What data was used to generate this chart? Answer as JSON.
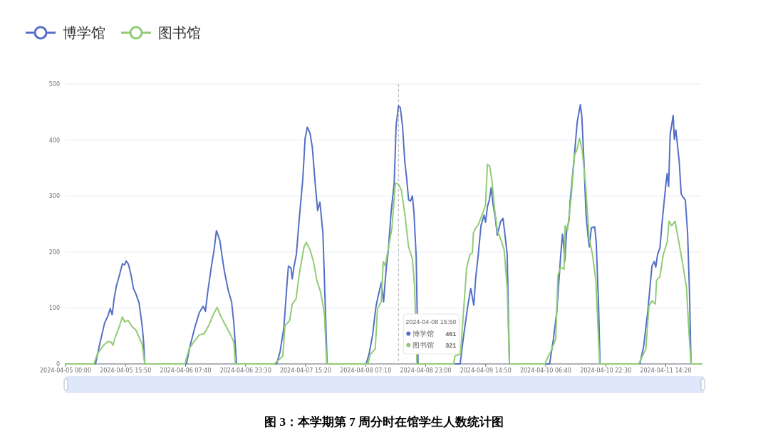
{
  "chart_data": {
    "type": "line",
    "title": "图 3：本学期第 7 周分时在馆学生人数统计图",
    "legend": "top left",
    "grid": "y",
    "ylim": [
      0,
      500
    ],
    "yticks": [
      0,
      100,
      200,
      300,
      400,
      500
    ],
    "xlim": [
      "2024-04-05T00:00",
      "2024-04-11T23:50"
    ],
    "xticks": [
      {
        "value": "2024-04-05T00:00",
        "label": "2024-04-05 00:00"
      },
      {
        "value": "2024-04-05T15:50",
        "label": "2024-04-05 15:50"
      },
      {
        "value": "2024-04-06T07:40",
        "label": "2024-04-06 07:40"
      },
      {
        "value": "2024-04-06T23:30",
        "label": "2024-04-06 23:30"
      },
      {
        "value": "2024-04-07T15:20",
        "label": "2024-04-07 15:20"
      },
      {
        "value": "2024-04-08T07:10",
        "label": "2024-04-08 07:10"
      },
      {
        "value": "2024-04-08T23:00",
        "label": "2024-04-08 23:00"
      },
      {
        "value": "2024-04-09T14:50",
        "label": "2024-04-09 14:50"
      },
      {
        "value": "2024-04-10T06:40",
        "label": "2024-04-10 06:40"
      },
      {
        "value": "2024-04-10T22:30",
        "label": "2024-04-10 22:30"
      },
      {
        "value": "2024-04-11T14:20",
        "label": "2024-04-11 14:20"
      }
    ],
    "ref_lines": [
      {
        "axis": "x",
        "value": "2024-04-08T15:50",
        "color": "#999999",
        "line_style": "dashed"
      }
    ],
    "annotations": [
      "2024-04-08 15:50",
      "博学馆",
      "461",
      "图书馆",
      "321"
    ],
    "series": [
      {
        "name": "博学馆",
        "color": "#5470c6",
        "x": [
          "2024-04-05T00:00",
          "2024-04-05T07:54",
          "2024-04-05T09:00",
          "2024-04-05T10:18",
          "2024-04-05T11:12",
          "2024-04-05T11:48",
          "2024-04-05T12:18",
          "2024-04-05T12:48",
          "2024-04-05T13:24",
          "2024-04-05T14:12",
          "2024-04-05T15:00",
          "2024-04-05T15:36",
          "2024-04-05T16:00",
          "2024-04-05T16:36",
          "2024-04-05T17:18",
          "2024-04-05T17:54",
          "2024-04-05T18:30",
          "2024-04-05T19:24",
          "2024-04-05T20:12",
          "2024-04-05T20:36",
          "2024-04-05T20:54",
          "2024-04-06T07:54",
          "2024-04-06T08:48",
          "2024-04-06T10:06",
          "2024-04-06T11:18",
          "2024-04-06T12:18",
          "2024-04-06T12:54",
          "2024-04-06T13:30",
          "2024-04-06T14:30",
          "2024-04-06T15:12",
          "2024-04-06T15:48",
          "2024-04-06T16:42",
          "2024-04-06T17:18",
          "2024-04-06T17:54",
          "2024-04-06T18:54",
          "2024-04-06T19:48",
          "2024-04-06T20:24",
          "2024-04-06T21:06",
          "2024-04-07T07:42",
          "2024-04-07T08:36",
          "2024-04-07T09:36",
          "2024-04-07T10:24",
          "2024-04-07T10:48",
          "2024-04-07T11:30",
          "2024-04-07T11:48",
          "2024-04-07T12:18",
          "2024-04-07T12:54",
          "2024-04-07T13:36",
          "2024-04-07T14:36",
          "2024-04-07T15:12",
          "2024-04-07T15:48",
          "2024-04-07T16:30",
          "2024-04-07T17:06",
          "2024-04-07T17:54",
          "2024-04-07T18:30",
          "2024-04-07T19:06",
          "2024-04-07T19:54",
          "2024-04-07T20:30",
          "2024-04-07T21:00",
          "2024-04-08T07:18",
          "2024-04-08T08:06",
          "2024-04-08T09:00",
          "2024-04-08T09:54",
          "2024-04-08T10:42",
          "2024-04-08T11:18",
          "2024-04-08T11:54",
          "2024-04-08T12:36",
          "2024-04-08T13:06",
          "2024-04-08T13:54",
          "2024-04-08T14:42",
          "2024-04-08T15:12",
          "2024-04-08T15:50",
          "2024-04-08T16:18",
          "2024-04-08T16:54",
          "2024-04-08T17:30",
          "2024-04-08T18:00",
          "2024-04-08T18:30",
          "2024-04-08T19:00",
          "2024-04-08T19:30",
          "2024-04-08T19:54",
          "2024-04-08T20:30",
          "2024-04-08T21:00",
          "2024-04-09T08:06",
          "2024-04-09T08:54",
          "2024-04-09T10:06",
          "2024-04-09T10:54",
          "2024-04-09T11:42",
          "2024-04-09T12:12",
          "2024-04-09T12:48",
          "2024-04-09T13:36",
          "2024-04-09T14:24",
          "2024-04-09T14:48",
          "2024-04-09T15:18",
          "2024-04-09T15:48",
          "2024-04-09T16:18",
          "2024-04-09T16:42",
          "2024-04-09T17:18",
          "2024-04-09T17:54",
          "2024-04-09T18:48",
          "2024-04-09T19:24",
          "2024-04-09T19:48",
          "2024-04-09T20:30",
          "2024-04-09T21:06",
          "2024-04-10T07:42",
          "2024-04-10T08:42",
          "2024-04-10T09:36",
          "2024-04-10T10:36",
          "2024-04-10T11:06",
          "2024-04-10T11:24",
          "2024-04-10T11:42",
          "2024-04-10T12:12",
          "2024-04-10T12:48",
          "2024-04-10T13:06",
          "2024-04-10T13:48",
          "2024-04-10T14:18",
          "2024-04-10T15:00",
          "2024-04-10T15:48",
          "2024-04-10T16:12",
          "2024-04-10T16:42",
          "2024-04-10T17:18",
          "2024-04-10T17:48",
          "2024-04-10T18:12",
          "2024-04-10T18:42",
          "2024-04-10T19:36",
          "2024-04-10T20:00",
          "2024-04-10T20:36",
          "2024-04-10T21:00",
          "2024-04-11T07:30",
          "2024-04-11T08:30",
          "2024-04-11T09:36",
          "2024-04-11T10:42",
          "2024-04-11T11:18",
          "2024-04-11T11:42",
          "2024-04-11T12:12",
          "2024-04-11T12:48",
          "2024-04-11T13:24",
          "2024-04-11T14:24",
          "2024-04-11T14:42",
          "2024-04-11T15:06",
          "2024-04-11T15:30",
          "2024-04-11T16:18",
          "2024-04-11T16:36",
          "2024-04-11T17:00",
          "2024-04-11T17:54",
          "2024-04-11T18:24",
          "2024-04-11T18:54",
          "2024-04-11T19:30",
          "2024-04-11T20:06",
          "2024-04-11T20:36",
          "2024-04-11T21:00",
          "2024-04-11T23:50"
        ],
        "values": [
          0,
          0,
          35,
          73,
          86,
          99,
          88,
          116,
          139,
          158,
          179,
          177,
          184,
          178,
          158,
          135,
          126,
          109,
          69,
          39,
          0,
          0,
          31,
          65,
          92,
          103,
          94,
          128,
          175,
          204,
          238,
          221,
          192,
          166,
          132,
          111,
          73,
          0,
          0,
          22,
          65,
          141,
          175,
          171,
          152,
          175,
          196,
          255,
          331,
          403,
          423,
          412,
          387,
          319,
          274,
          289,
          234,
          107,
          0,
          0,
          18,
          52,
          103,
          128,
          145,
          111,
          171,
          200,
          272,
          323,
          425,
          461,
          458,
          425,
          361,
          331,
          293,
          291,
          300,
          272,
          192,
          0,
          0,
          44,
          103,
          135,
          105,
          154,
          190,
          247,
          266,
          253,
          281,
          293,
          315,
          289,
          264,
          230,
          255,
          260,
          238,
          196,
          0,
          0,
          44,
          94,
          192,
          232,
          213,
          183,
          239,
          255,
          289,
          340,
          378,
          433,
          463,
          442,
          370,
          268,
          230,
          209,
          243,
          245,
          217,
          107,
          0,
          0,
          31,
          94,
          175,
          183,
          173,
          196,
          207,
          255,
          323,
          340,
          317,
          410,
          444,
          401,
          418,
          361,
          304,
          298,
          293,
          234,
          128,
          0,
          0
        ]
      },
      {
        "name": "图书馆",
        "color": "#91cc75",
        "x": [
          "2024-04-05T00:00",
          "2024-04-05T07:30",
          "2024-04-05T08:24",
          "2024-04-05T10:00",
          "2024-04-05T11:12",
          "2024-04-05T12:00",
          "2024-04-05T12:30",
          "2024-04-05T13:06",
          "2024-04-05T13:54",
          "2024-04-05T15:00",
          "2024-04-05T15:36",
          "2024-04-05T16:30",
          "2024-04-05T17:30",
          "2024-04-05T18:30",
          "2024-04-05T19:24",
          "2024-04-05T20:12",
          "2024-04-05T20:54",
          "2024-04-06T07:30",
          "2024-04-06T08:36",
          "2024-04-06T09:48",
          "2024-04-06T11:18",
          "2024-04-06T12:36",
          "2024-04-06T13:48",
          "2024-04-06T15:06",
          "2024-04-06T16:00",
          "2024-04-06T16:54",
          "2024-04-06T18:12",
          "2024-04-06T19:24",
          "2024-04-06T20:24",
          "2024-04-06T20:48",
          "2024-04-07T07:06",
          "2024-04-07T09:18",
          "2024-04-07T09:54",
          "2024-04-07T11:06",
          "2024-04-07T11:48",
          "2024-04-07T12:48",
          "2024-04-07T13:42",
          "2024-04-07T14:54",
          "2024-04-07T15:30",
          "2024-04-07T16:30",
          "2024-04-07T17:24",
          "2024-04-07T18:18",
          "2024-04-07T19:18",
          "2024-04-07T20:18",
          "2024-04-07T20:54",
          "2024-04-08T07:48",
          "2024-04-08T08:18",
          "2024-04-08T09:42",
          "2024-04-08T10:18",
          "2024-04-08T11:18",
          "2024-04-08T11:48",
          "2024-04-08T12:18",
          "2024-04-08T13:06",
          "2024-04-08T14:06",
          "2024-04-08T15:00",
          "2024-04-08T15:50",
          "2024-04-08T16:36",
          "2024-04-08T17:30",
          "2024-04-08T18:30",
          "2024-04-08T19:30",
          "2024-04-08T20:06",
          "2024-04-08T20:42",
          "2024-04-09T06:24",
          "2024-04-09T06:42",
          "2024-04-09T08:12",
          "2024-04-09T09:48",
          "2024-04-09T10:42",
          "2024-04-09T11:18",
          "2024-04-09T11:36",
          "2024-04-09T12:12",
          "2024-04-09T12:54",
          "2024-04-09T14:12",
          "2024-04-09T14:48",
          "2024-04-09T15:18",
          "2024-04-09T15:54",
          "2024-04-09T16:30",
          "2024-04-09T17:06",
          "2024-04-09T17:54",
          "2024-04-09T18:54",
          "2024-04-09T19:42",
          "2024-04-09T20:30",
          "2024-04-09T21:06",
          "2024-04-10T06:30",
          "2024-04-10T06:48",
          "2024-04-10T08:00",
          "2024-04-10T09:18",
          "2024-04-10T09:54",
          "2024-04-10T10:36",
          "2024-04-10T11:30",
          "2024-04-10T11:48",
          "2024-04-10T12:24",
          "2024-04-10T13:24",
          "2024-04-10T14:18",
          "2024-04-10T14:54",
          "2024-04-10T15:36",
          "2024-04-10T16:18",
          "2024-04-10T17:12",
          "2024-04-10T18:06",
          "2024-04-10T19:00",
          "2024-04-10T19:54",
          "2024-04-10T20:54",
          "2024-04-11T07:12",
          "2024-04-11T09:06",
          "2024-04-11T09:54",
          "2024-04-11T10:42",
          "2024-04-11T11:36",
          "2024-04-11T11:54",
          "2024-04-11T12:48",
          "2024-04-11T13:42",
          "2024-04-11T14:42",
          "2024-04-11T15:12",
          "2024-04-11T15:54",
          "2024-04-11T16:48",
          "2024-04-11T17:42",
          "2024-04-11T18:42",
          "2024-04-11T19:48",
          "2024-04-11T20:30",
          "2024-04-11T21:00",
          "2024-04-11T23:50"
        ],
        "values": [
          0,
          0,
          18,
          33,
          40,
          39,
          33,
          48,
          61,
          84,
          75,
          78,
          67,
          61,
          48,
          35,
          0,
          0,
          27,
          39,
          52,
          54,
          69,
          90,
          101,
          86,
          69,
          54,
          39,
          0,
          0,
          14,
          69,
          77,
          107,
          116,
          162,
          209,
          217,
          204,
          183,
          149,
          128,
          90,
          0,
          0,
          16,
          27,
          99,
          111,
          183,
          175,
          204,
          243,
          323,
          321,
          310,
          268,
          209,
          188,
          137,
          0,
          0,
          14,
          18,
          171,
          196,
          198,
          234,
          243,
          249,
          272,
          285,
          357,
          353,
          327,
          281,
          238,
          221,
          204,
          137,
          0,
          0,
          6,
          22,
          44,
          158,
          173,
          169,
          247,
          238,
          298,
          374,
          382,
          403,
          382,
          319,
          226,
          196,
          149,
          0,
          0,
          27,
          103,
          113,
          107,
          149,
          156,
          196,
          217,
          255,
          247,
          255,
          221,
          183,
          137,
          52,
          0,
          0
        ]
      }
    ]
  }
}
